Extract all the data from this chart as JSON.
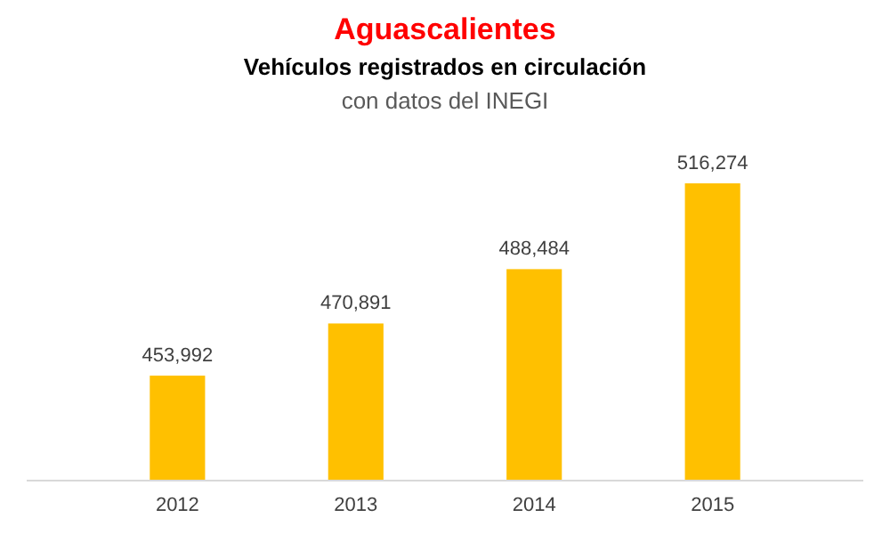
{
  "chart_data": {
    "type": "bar",
    "title": "Aguascalientes",
    "subtitle": "Vehículos registrados en circulación",
    "annotations": [
      "con datos del INEGI"
    ],
    "categories": [
      "2012",
      "2013",
      "2014",
      "2015"
    ],
    "values": [
      453992,
      470891,
      488484,
      516274
    ],
    "value_labels": [
      "453,992",
      "470,891",
      "488,484",
      "516,274"
    ],
    "color": "#ffc000",
    "ylim": [
      420000,
      516274
    ]
  }
}
